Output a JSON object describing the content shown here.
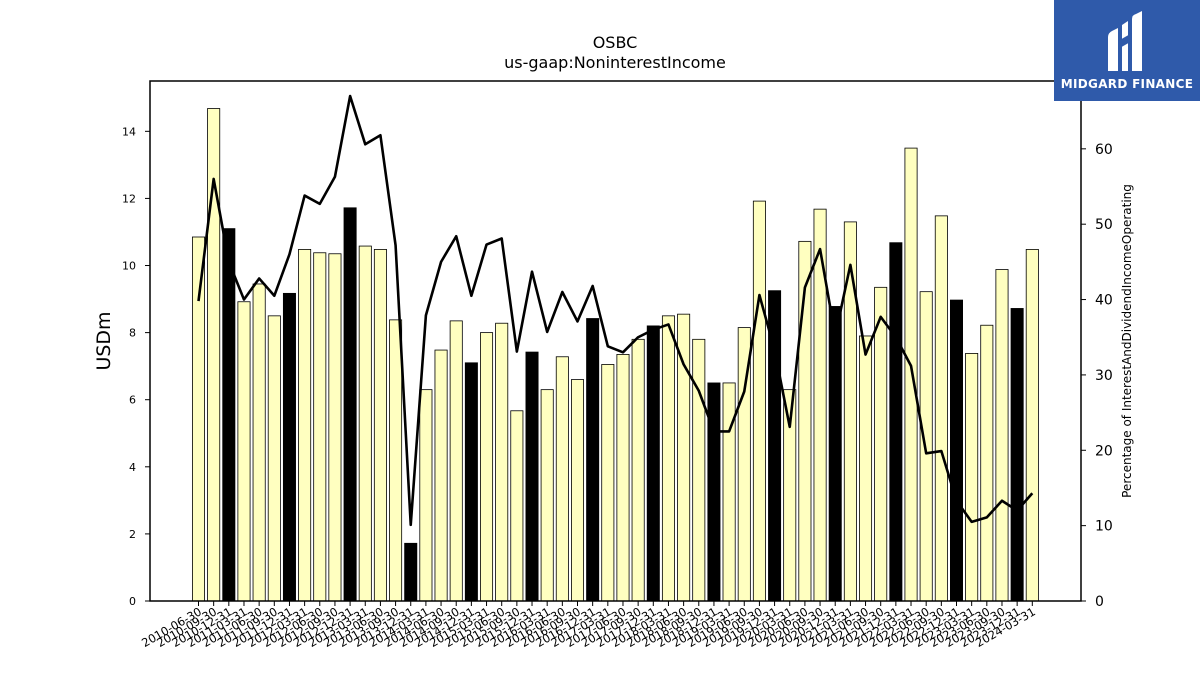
{
  "chart_data": {
    "type": "bar",
    "title": "OSBC",
    "subtitle": "us-gaap:NoninterestIncome",
    "ylabel": "USDm",
    "y2label": "Percentage of InterestAndDividendIncomeOperating",
    "ylim": [
      0,
      15.5
    ],
    "y2lim": [
      0,
      69
    ],
    "yticks": [
      0,
      2,
      4,
      6,
      8,
      10,
      12,
      14
    ],
    "y2ticks": [
      0,
      10,
      20,
      30,
      40,
      50,
      60
    ],
    "categories": [
      "2010-06-30",
      "2010-09-30",
      "2010-12-31",
      "2011-03-31",
      "2011-06-30",
      "2011-09-30",
      "2011-12-31",
      "2012-03-31",
      "2012-06-30",
      "2012-09-30",
      "2012-12-31",
      "2013-03-31",
      "2013-06-30",
      "2013-09-30",
      "2013-12-31",
      "2014-03-31",
      "2014-06-30",
      "2014-09-30",
      "2014-12-31",
      "2015-03-31",
      "2015-06-30",
      "2015-09-30",
      "2015-12-31",
      "2016-03-31",
      "2016-06-30",
      "2016-09-30",
      "2016-12-31",
      "2017-03-31",
      "2017-06-30",
      "2017-09-30",
      "2017-12-31",
      "2018-03-31",
      "2018-06-30",
      "2018-09-30",
      "2018-12-31",
      "2019-03-31",
      "2019-06-30",
      "2019-09-30",
      "2019-12-31",
      "2020-03-31",
      "2020-06-30",
      "2020-09-30",
      "2020-12-31",
      "2021-03-31",
      "2021-06-30",
      "2021-09-30",
      "2021-12-31",
      "2022-03-31",
      "2022-06-30",
      "2022-09-30",
      "2022-12-31",
      "2023-03-31",
      "2023-06-30",
      "2023-09-30",
      "2023-12-31",
      "2024-03-31"
    ],
    "series": [
      {
        "type": "bar",
        "values": [
          10.85,
          14.68,
          11.1,
          8.92,
          9.45,
          8.5,
          9.17,
          10.48,
          10.38,
          10.35,
          11.72,
          10.58,
          10.48,
          8.38,
          1.72,
          6.3,
          7.48,
          8.35,
          7.1,
          8.0,
          8.28,
          5.67,
          7.42,
          6.3,
          7.28,
          6.6,
          8.42,
          7.05,
          7.35,
          7.8,
          8.2,
          8.5,
          8.55,
          7.8,
          6.5,
          6.5,
          8.15,
          11.92,
          9.25,
          6.3,
          10.72,
          11.68,
          8.78,
          11.3,
          7.9,
          9.35,
          10.68,
          13.5,
          9.22,
          11.48,
          8.97,
          7.38,
          8.22,
          9.88,
          8.72,
          10.48
        ],
        "highlight": [
          false,
          false,
          true,
          false,
          false,
          false,
          true,
          false,
          false,
          false,
          true,
          false,
          false,
          false,
          true,
          false,
          false,
          false,
          true,
          false,
          false,
          false,
          true,
          false,
          false,
          false,
          true,
          false,
          false,
          false,
          true,
          false,
          false,
          false,
          true,
          false,
          false,
          false,
          true,
          false,
          false,
          false,
          true,
          false,
          false,
          false,
          true,
          false,
          false,
          false,
          true,
          false,
          false,
          false,
          true,
          false
        ]
      },
      {
        "type": "line",
        "axis": "right",
        "values": [
          39.8,
          56.0,
          45.0,
          40.0,
          42.8,
          40.5,
          46.0,
          53.8,
          52.7,
          56.3,
          67.0,
          60.6,
          61.8,
          47.2,
          10.1,
          37.9,
          45.0,
          48.4,
          40.5,
          47.3,
          48.1,
          33.1,
          43.7,
          35.7,
          41.0,
          37.1,
          41.8,
          33.8,
          33.0,
          35.0,
          36.0,
          36.7,
          31.4,
          27.9,
          22.5,
          22.5,
          27.8,
          40.6,
          33.3,
          23.1,
          41.6,
          46.7,
          35.2,
          44.6,
          32.7,
          37.7,
          35.0,
          31.2,
          19.6,
          19.9,
          13.3,
          10.5,
          11.1,
          13.3,
          12.0,
          14.3
        ]
      }
    ],
    "colors": {
      "bar_fill": "#ffffc0",
      "bar_highlight": "#000000",
      "bar_edge": "#000000",
      "line": "#000000"
    }
  },
  "logo": {
    "text": "MIDGARD FINANCE",
    "bg_color": "#2f5aaa",
    "icon": "midgard-logo-icon"
  }
}
